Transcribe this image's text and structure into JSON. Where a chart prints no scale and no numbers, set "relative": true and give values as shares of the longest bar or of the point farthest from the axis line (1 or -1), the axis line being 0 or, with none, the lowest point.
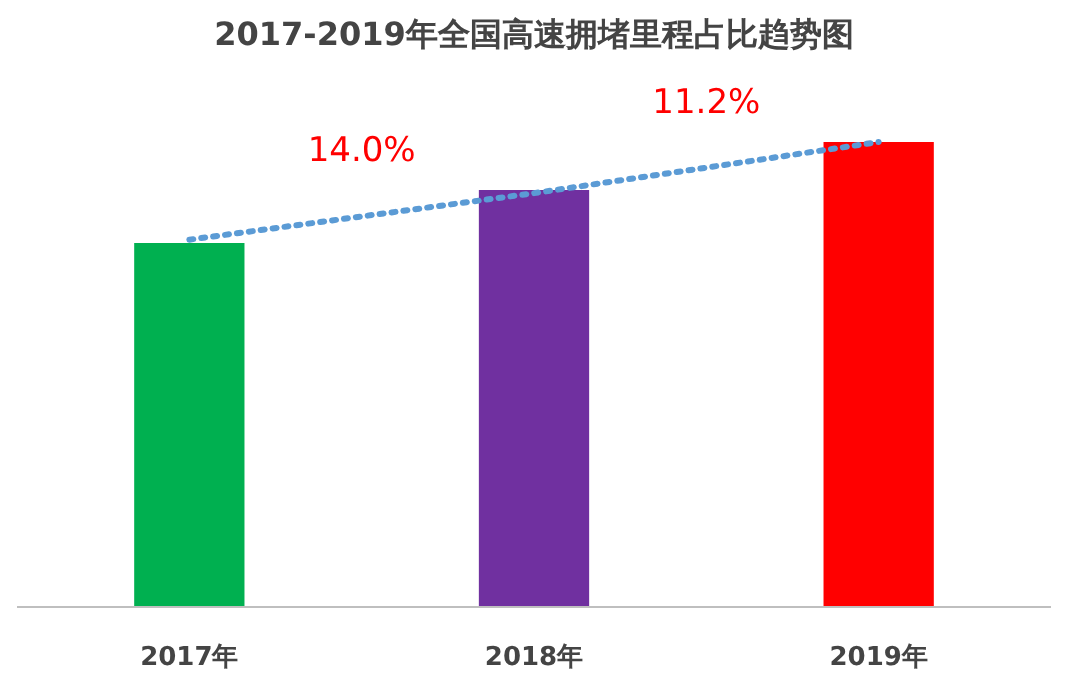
{
  "chart_data": {
    "type": "bar",
    "title": "2017-2019年全国高速拥堵里程占比趋势图",
    "relative": true,
    "categories": [
      "2017年",
      "2018年",
      "2019年"
    ],
    "series": [
      {
        "colors": [
          "#00b050",
          "#7030a0",
          "#ff0000"
        ],
        "values": [
          0.783,
          0.897,
          1.0
        ]
      },
      {
        "type": "line",
        "x": [
          "2017年",
          "2018年",
          "2019年"
        ],
        "color": "#5b9bd5",
        "line_style": "dotted",
        "values": [
          0.79,
          0.89,
          1.0
        ]
      }
    ],
    "annotations": [
      "14.0%",
      "11.2%"
    ]
  }
}
